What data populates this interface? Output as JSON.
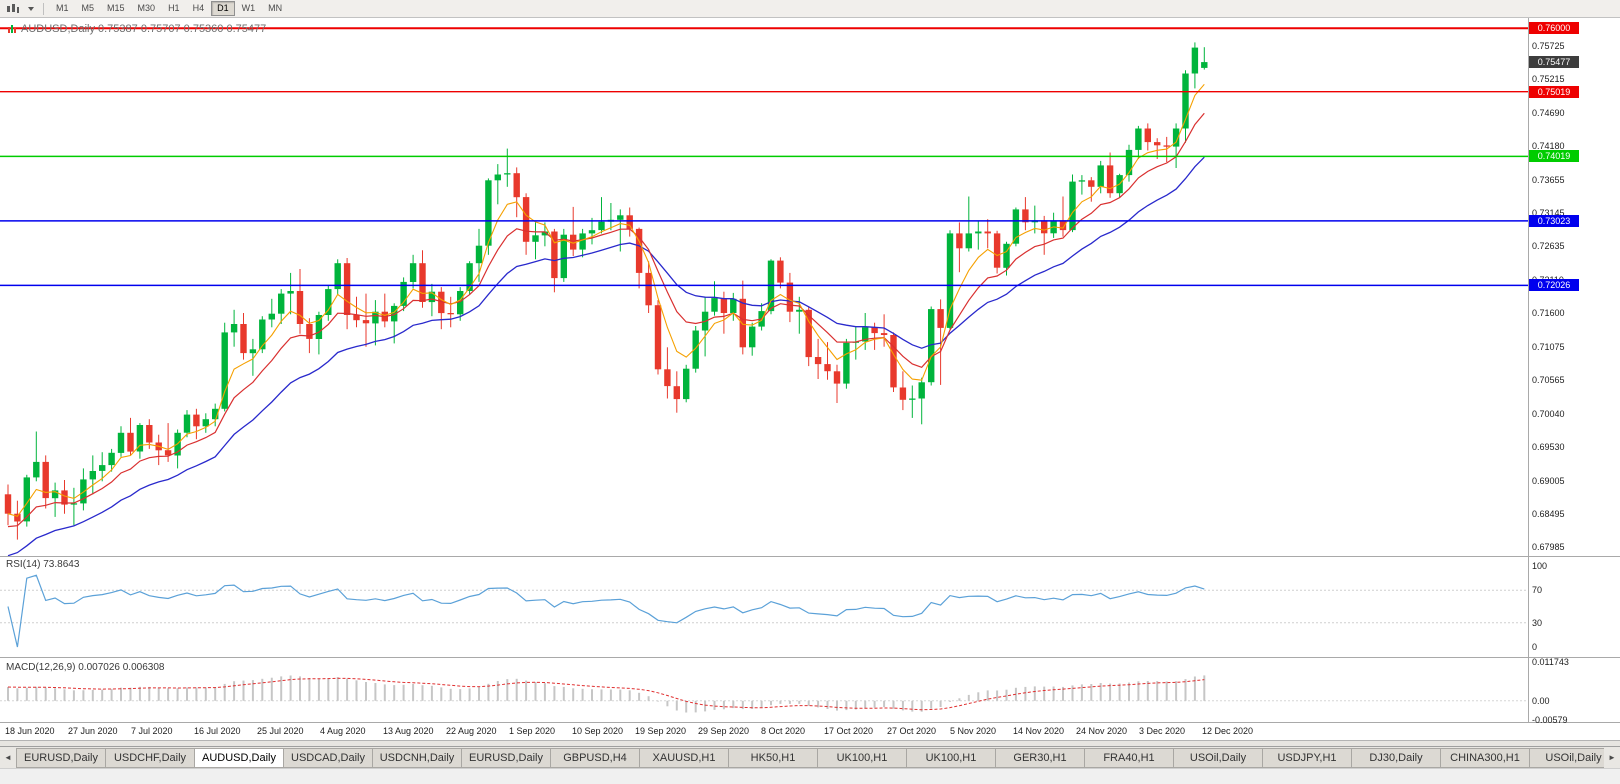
{
  "toolbar": {
    "timeframes": [
      {
        "label": "M1",
        "active": false
      },
      {
        "label": "M5",
        "active": false
      },
      {
        "label": "M15",
        "active": false
      },
      {
        "label": "M30",
        "active": false
      },
      {
        "label": "H1",
        "active": false
      },
      {
        "label": "H4",
        "active": false
      },
      {
        "label": "D1",
        "active": true
      },
      {
        "label": "W1",
        "active": false
      },
      {
        "label": "MN",
        "active": false
      }
    ]
  },
  "chart_data": {
    "type": "candlestick",
    "symbol": "AUDUSD",
    "period": "Daily",
    "title": "AUDUSD,Daily 0.75387 0.75707 0.75360 0.75477",
    "ohlc": {
      "open": "0.75387",
      "high": "0.75707",
      "low": "0.75360",
      "close": "0.75477"
    },
    "colors": {
      "up": "#00b43c",
      "down": "#e8392c",
      "ma_fast": "#f5a000",
      "ma_mid": "#d93030",
      "ma_slow": "#2929cc",
      "rsi": "#5ba1d8",
      "macd_hist": "#c6c6c6",
      "macd_signal": "#e03030",
      "level_red": "#ee0000",
      "level_green": "#00cc00",
      "level_blue": "#0000ee",
      "current_badge": "#3d3d3d"
    },
    "y_axis_ticks": [
      "0.75725",
      "0.75215",
      "0.74690",
      "0.74180",
      "0.73655",
      "0.73145",
      "0.72635",
      "0.72110",
      "0.71600",
      "0.71075",
      "0.70565",
      "0.70040",
      "0.69530",
      "0.69005",
      "0.68495",
      "0.67985"
    ],
    "x_axis_labels": [
      "18 Jun 2020",
      "27 Jun 2020",
      "7 Jul 2020",
      "16 Jul 2020",
      "25 Jul 2020",
      "4 Aug 2020",
      "13 Aug 2020",
      "22 Aug 2020",
      "1 Sep 2020",
      "10 Sep 2020",
      "19 Sep 2020",
      "29 Sep 2020",
      "8 Oct 2020",
      "17 Oct 2020",
      "27 Oct 2020",
      "5 Nov 2020",
      "14 Nov 2020",
      "24 Nov 2020",
      "3 Dec 2020",
      "12 Dec 2020"
    ],
    "horizontal_levels": [
      {
        "price": 0.76,
        "label": "0.76000",
        "color_key": "level_red",
        "width": 2
      },
      {
        "price": 0.75019,
        "label": "0.75019",
        "color_key": "level_red",
        "width": 1.3
      },
      {
        "price": 0.74019,
        "label": "0.74019",
        "color_key": "level_green",
        "width": 1.5
      },
      {
        "price": 0.73023,
        "label": "0.73023",
        "color_key": "level_blue",
        "width": 1.5
      },
      {
        "price": 0.72026,
        "label": "0.72026",
        "color_key": "level_blue",
        "width": 1.5
      }
    ],
    "current_price": {
      "value": 0.75477,
      "label": "0.75477"
    },
    "overlays": [
      {
        "name": "ema-fast",
        "period": 5,
        "color_key": "ma_fast"
      },
      {
        "name": "ema-mid",
        "period": 10,
        "color_key": "ma_mid"
      },
      {
        "name": "ema-slow",
        "period": 21,
        "color_key": "ma_slow"
      }
    ],
    "rsi": {
      "label": "RSI(14) 73.8643",
      "period": 14,
      "value": 73.8643,
      "axis_ticks": [
        "100",
        "70",
        "30",
        "0"
      ],
      "axis_tick_values": [
        100,
        70,
        30,
        0
      ],
      "level_lines": [
        70,
        30
      ]
    },
    "macd": {
      "label": "MACD(12,26,9) 0.007026 0.006308",
      "fast": 12,
      "slow": 26,
      "signal": 9,
      "macd_value": 0.007026,
      "signal_value": 0.006308,
      "axis_ticks": [
        "0.011743",
        "0.00",
        "-0.00579"
      ],
      "axis_tick_values": [
        0.011743,
        0,
        -0.00579
      ]
    },
    "candles": [
      [
        0.688,
        0.6895,
        0.6832,
        0.685
      ],
      [
        0.685,
        0.687,
        0.681,
        0.6838
      ],
      [
        0.6838,
        0.691,
        0.683,
        0.6906
      ],
      [
        0.6906,
        0.6977,
        0.69,
        0.693
      ],
      [
        0.693,
        0.694,
        0.6858,
        0.6874
      ],
      [
        0.6874,
        0.6898,
        0.6845,
        0.6886
      ],
      [
        0.6886,
        0.6902,
        0.685,
        0.6864
      ],
      [
        0.6864,
        0.689,
        0.6832,
        0.6866
      ],
      [
        0.6866,
        0.692,
        0.6855,
        0.6903
      ],
      [
        0.6903,
        0.694,
        0.688,
        0.6916
      ],
      [
        0.6916,
        0.6945,
        0.69,
        0.6925
      ],
      [
        0.6925,
        0.695,
        0.6915,
        0.6944
      ],
      [
        0.6944,
        0.6985,
        0.6938,
        0.6975
      ],
      [
        0.6975,
        0.6998,
        0.694,
        0.6946
      ],
      [
        0.6946,
        0.699,
        0.6935,
        0.6987
      ],
      [
        0.6987,
        0.6996,
        0.695,
        0.696
      ],
      [
        0.696,
        0.6972,
        0.6925,
        0.6948
      ],
      [
        0.6948,
        0.699,
        0.693,
        0.694
      ],
      [
        0.694,
        0.698,
        0.692,
        0.6975
      ],
      [
        0.6975,
        0.701,
        0.6968,
        0.7003
      ],
      [
        0.7003,
        0.7012,
        0.6965,
        0.6985
      ],
      [
        0.6985,
        0.7005,
        0.6975,
        0.6996
      ],
      [
        0.6996,
        0.702,
        0.6985,
        0.7012
      ],
      [
        0.7012,
        0.7145,
        0.7008,
        0.713
      ],
      [
        0.713,
        0.7165,
        0.7108,
        0.7143
      ],
      [
        0.7143,
        0.716,
        0.7088,
        0.7098
      ],
      [
        0.7098,
        0.712,
        0.7063,
        0.7104
      ],
      [
        0.7104,
        0.7155,
        0.7098,
        0.715
      ],
      [
        0.715,
        0.7182,
        0.7138,
        0.7159
      ],
      [
        0.7159,
        0.7197,
        0.7143,
        0.719
      ],
      [
        0.719,
        0.7222,
        0.7158,
        0.7194
      ],
      [
        0.7194,
        0.7228,
        0.7128,
        0.7143
      ],
      [
        0.7143,
        0.7152,
        0.7098,
        0.712
      ],
      [
        0.712,
        0.7162,
        0.7096,
        0.7157
      ],
      [
        0.7157,
        0.7202,
        0.7148,
        0.7197
      ],
      [
        0.7197,
        0.7243,
        0.7188,
        0.7237
      ],
      [
        0.7237,
        0.7245,
        0.7135,
        0.7157
      ],
      [
        0.7157,
        0.7185,
        0.7138,
        0.7149
      ],
      [
        0.7149,
        0.719,
        0.7108,
        0.7144
      ],
      [
        0.7144,
        0.718,
        0.711,
        0.7162
      ],
      [
        0.7162,
        0.719,
        0.7138,
        0.7147
      ],
      [
        0.7147,
        0.7175,
        0.7113,
        0.7171
      ],
      [
        0.7171,
        0.7215,
        0.7163,
        0.7208
      ],
      [
        0.7208,
        0.725,
        0.7198,
        0.7237
      ],
      [
        0.7237,
        0.7257,
        0.7168,
        0.7177
      ],
      [
        0.7177,
        0.7205,
        0.7155,
        0.7193
      ],
      [
        0.7193,
        0.72,
        0.7135,
        0.716
      ],
      [
        0.716,
        0.7185,
        0.7138,
        0.7158
      ],
      [
        0.7158,
        0.72,
        0.7148,
        0.7194
      ],
      [
        0.7194,
        0.724,
        0.7188,
        0.7237
      ],
      [
        0.7237,
        0.729,
        0.7208,
        0.7264
      ],
      [
        0.7264,
        0.7368,
        0.725,
        0.7365
      ],
      [
        0.7365,
        0.739,
        0.7328,
        0.7374
      ],
      [
        0.7374,
        0.7414,
        0.7355,
        0.7376
      ],
      [
        0.7376,
        0.7385,
        0.7308,
        0.7339
      ],
      [
        0.7339,
        0.7345,
        0.725,
        0.727
      ],
      [
        0.727,
        0.73,
        0.7243,
        0.728
      ],
      [
        0.728,
        0.73,
        0.7263,
        0.7286
      ],
      [
        0.7286,
        0.729,
        0.7192,
        0.7214
      ],
      [
        0.7214,
        0.729,
        0.7208,
        0.7281
      ],
      [
        0.7281,
        0.7324,
        0.7248,
        0.7258
      ],
      [
        0.7258,
        0.729,
        0.7246,
        0.7283
      ],
      [
        0.7283,
        0.7307,
        0.7266,
        0.7288
      ],
      [
        0.7288,
        0.7339,
        0.7283,
        0.7301
      ],
      [
        0.7301,
        0.733,
        0.7288,
        0.7304
      ],
      [
        0.7304,
        0.732,
        0.7255,
        0.7311
      ],
      [
        0.7311,
        0.7323,
        0.7278,
        0.729
      ],
      [
        0.729,
        0.7292,
        0.7198,
        0.7222
      ],
      [
        0.7222,
        0.724,
        0.716,
        0.7172
      ],
      [
        0.7172,
        0.718,
        0.7065,
        0.7073
      ],
      [
        0.7073,
        0.7107,
        0.7028,
        0.7047
      ],
      [
        0.7047,
        0.707,
        0.7006,
        0.7027
      ],
      [
        0.7027,
        0.708,
        0.7022,
        0.7074
      ],
      [
        0.7074,
        0.714,
        0.7068,
        0.7133
      ],
      [
        0.7133,
        0.7185,
        0.7093,
        0.7162
      ],
      [
        0.7162,
        0.7209,
        0.7156,
        0.7183
      ],
      [
        0.7183,
        0.7193,
        0.7128,
        0.716
      ],
      [
        0.716,
        0.7191,
        0.7148,
        0.7182
      ],
      [
        0.7182,
        0.721,
        0.7096,
        0.7107
      ],
      [
        0.7107,
        0.7145,
        0.7094,
        0.7139
      ],
      [
        0.7139,
        0.7175,
        0.7133,
        0.7163
      ],
      [
        0.7163,
        0.7243,
        0.7158,
        0.7241
      ],
      [
        0.7241,
        0.7246,
        0.7198,
        0.7207
      ],
      [
        0.7207,
        0.7222,
        0.7146,
        0.7162
      ],
      [
        0.7162,
        0.7185,
        0.7128,
        0.7165
      ],
      [
        0.7165,
        0.717,
        0.7078,
        0.7092
      ],
      [
        0.7092,
        0.712,
        0.7058,
        0.7081
      ],
      [
        0.7081,
        0.7115,
        0.7057,
        0.707
      ],
      [
        0.707,
        0.708,
        0.7021,
        0.7051
      ],
      [
        0.7051,
        0.712,
        0.7043,
        0.7114
      ],
      [
        0.7114,
        0.714,
        0.7088,
        0.7116
      ],
      [
        0.7116,
        0.716,
        0.7103,
        0.7138
      ],
      [
        0.7138,
        0.7145,
        0.7103,
        0.7129
      ],
      [
        0.7129,
        0.7158,
        0.7108,
        0.7126
      ],
      [
        0.7126,
        0.713,
        0.7038,
        0.7045
      ],
      [
        0.7045,
        0.707,
        0.701,
        0.7026
      ],
      [
        0.7026,
        0.7048,
        0.6998,
        0.7028
      ],
      [
        0.7028,
        0.706,
        0.6988,
        0.7053
      ],
      [
        0.7053,
        0.717,
        0.7048,
        0.7166
      ],
      [
        0.7166,
        0.7181,
        0.7049,
        0.7137
      ],
      [
        0.7137,
        0.7288,
        0.7135,
        0.7283
      ],
      [
        0.7283,
        0.73,
        0.7223,
        0.726
      ],
      [
        0.726,
        0.734,
        0.7255,
        0.7283
      ],
      [
        0.7283,
        0.7302,
        0.7258,
        0.7286
      ],
      [
        0.7286,
        0.7305,
        0.726,
        0.7283
      ],
      [
        0.7283,
        0.7287,
        0.7221,
        0.723
      ],
      [
        0.723,
        0.727,
        0.7218,
        0.7267
      ],
      [
        0.7267,
        0.7323,
        0.7263,
        0.732
      ],
      [
        0.732,
        0.7339,
        0.7288,
        0.73
      ],
      [
        0.73,
        0.7326,
        0.7283,
        0.7303
      ],
      [
        0.7303,
        0.731,
        0.725,
        0.7283
      ],
      [
        0.7283,
        0.7315,
        0.7276,
        0.7303
      ],
      [
        0.7303,
        0.734,
        0.7278,
        0.7288
      ],
      [
        0.7288,
        0.7374,
        0.7285,
        0.7363
      ],
      [
        0.7363,
        0.7373,
        0.7343,
        0.7365
      ],
      [
        0.7365,
        0.737,
        0.7332,
        0.7355
      ],
      [
        0.7355,
        0.7395,
        0.7345,
        0.7388
      ],
      [
        0.7388,
        0.7408,
        0.7338,
        0.7345
      ],
      [
        0.7345,
        0.7375,
        0.7338,
        0.7373
      ],
      [
        0.7373,
        0.742,
        0.7363,
        0.7412
      ],
      [
        0.7412,
        0.7449,
        0.7398,
        0.7445
      ],
      [
        0.7445,
        0.7453,
        0.7411,
        0.7424
      ],
      [
        0.7424,
        0.743,
        0.7398,
        0.7419
      ],
      [
        0.7419,
        0.7432,
        0.7393,
        0.7417
      ],
      [
        0.7417,
        0.7453,
        0.7384,
        0.7445
      ],
      [
        0.7445,
        0.7535,
        0.7423,
        0.753
      ],
      [
        0.753,
        0.7578,
        0.7507,
        0.757
      ],
      [
        0.75387,
        0.75707,
        0.7536,
        0.75477
      ]
    ]
  },
  "tabs": {
    "items": [
      {
        "label": "EURUSD,Daily",
        "active": false
      },
      {
        "label": "USDCHF,Daily",
        "active": false
      },
      {
        "label": "AUDUSD,Daily",
        "active": true
      },
      {
        "label": "USDCAD,Daily",
        "active": false
      },
      {
        "label": "USDCNH,Daily",
        "active": false
      },
      {
        "label": "EURUSD,Daily",
        "active": false
      },
      {
        "label": "GBPUSD,H4",
        "active": false
      },
      {
        "label": "XAUUSD,H1",
        "active": false
      },
      {
        "label": "HK50,H1",
        "active": false
      },
      {
        "label": "UK100,H1",
        "active": false
      },
      {
        "label": "UK100,H1",
        "active": false
      },
      {
        "label": "GER30,H1",
        "active": false
      },
      {
        "label": "FRA40,H1",
        "active": false
      },
      {
        "label": "USOil,Daily",
        "active": false
      },
      {
        "label": "USDJPY,H1",
        "active": false
      },
      {
        "label": "DJ30,Daily",
        "active": false
      },
      {
        "label": "CHINA300,H1",
        "active": false
      },
      {
        "label": "USOil,Daily",
        "active": false
      }
    ],
    "scroll_left": "◄",
    "scroll_right": "►"
  }
}
